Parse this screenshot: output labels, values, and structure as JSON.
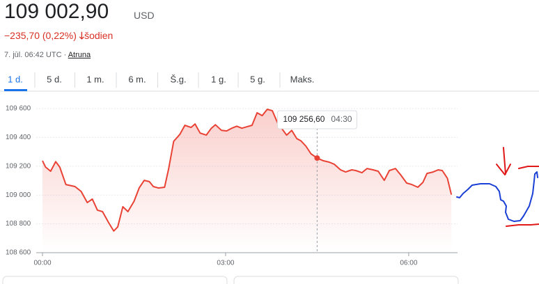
{
  "header": {
    "price": "109 002,90",
    "currency": "USD",
    "change": "−235,70 (0,22%)",
    "period": "šodien",
    "timestamp": "7. jūl. 06:42 UTC ·",
    "disclaimer": "Atruna"
  },
  "tabs": [
    "1 d.",
    "5 d.",
    "1 m.",
    "6 m.",
    "Š.g.",
    "1 g.",
    "5 g.",
    "Maks."
  ],
  "tooltip": {
    "price": "109 256,60",
    "time": "04:30"
  },
  "chart_data": {
    "type": "line",
    "xlim": [
      0,
      408
    ],
    "ylim": [
      108600,
      109600
    ],
    "xticks": [
      {
        "value": 0,
        "label": "00:00"
      },
      {
        "value": 180,
        "label": "03:00"
      },
      {
        "value": 360,
        "label": "06:00"
      }
    ],
    "yticks": [
      {
        "value": 108600,
        "label": "108 600"
      },
      {
        "value": 108800,
        "label": "108 800"
      },
      {
        "value": 109000,
        "label": "109 000"
      },
      {
        "value": 109200,
        "label": "109 200"
      },
      {
        "value": 109400,
        "label": "109 400"
      },
      {
        "value": 109600,
        "label": "109 600"
      }
    ],
    "grid": true,
    "series": [
      {
        "color": "#e94235",
        "x": [
          0,
          3,
          8,
          13,
          17,
          23,
          32,
          38,
          44,
          49,
          54,
          59,
          65,
          70,
          74,
          79,
          84,
          90,
          95,
          100,
          105,
          109,
          114,
          120,
          124,
          129,
          135,
          140,
          146,
          150,
          155,
          161,
          166,
          170,
          176,
          181,
          186,
          191,
          196,
          201,
          206,
          211,
          216,
          221,
          226,
          231,
          235,
          240,
          245,
          250,
          254,
          259,
          264,
          270,
          276,
          282,
          287,
          293,
          298,
          304,
          308,
          314,
          319,
          325,
          330,
          336,
          341,
          347,
          352,
          358,
          363,
          369,
          374,
          378,
          384,
          389,
          393,
          398,
          402
        ],
        "values": [
          109238,
          109194,
          109165,
          109232,
          109194,
          109073,
          109059,
          109025,
          108948,
          108972,
          108895,
          108885,
          108808,
          108750,
          108779,
          108919,
          108885,
          108957,
          109049,
          109102,
          109093,
          109059,
          109049,
          109054,
          109180,
          109373,
          109421,
          109484,
          109469,
          109493,
          109430,
          109416,
          109464,
          109488,
          109449,
          109445,
          109464,
          109478,
          109464,
          109474,
          109484,
          109571,
          109551,
          109595,
          109585,
          109503,
          109464,
          109416,
          109449,
          109392,
          109377,
          109339,
          109286,
          109256.6,
          109238,
          109228,
          109213,
          109175,
          109160,
          109175,
          109170,
          109155,
          109184,
          109175,
          109165,
          109102,
          109170,
          109184,
          109141,
          109083,
          109073,
          109054,
          109088,
          109150,
          109160,
          109175,
          109170,
          109117,
          109002.9
        ]
      }
    ]
  }
}
